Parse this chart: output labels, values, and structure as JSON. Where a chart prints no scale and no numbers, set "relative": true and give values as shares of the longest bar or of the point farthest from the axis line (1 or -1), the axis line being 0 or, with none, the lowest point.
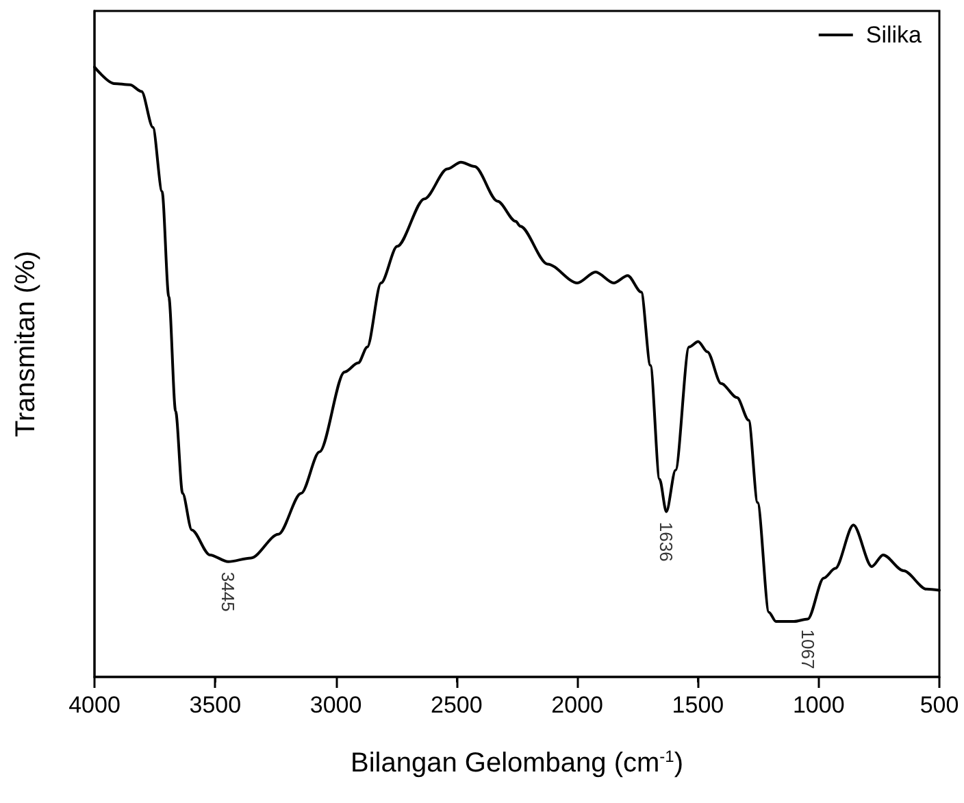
{
  "chart_data": {
    "type": "line",
    "relative": true,
    "xlabel": "Bilangan Gelombang (cm$^{-1}$)",
    "ylabel": "Transmitan (%)",
    "xlim": [
      4000,
      500
    ],
    "xticks": [
      4000,
      3500,
      3000,
      2500,
      2000,
      1500,
      1000,
      500
    ],
    "legend": "top right",
    "grid": false,
    "marker": "none",
    "line_style": "solid",
    "series": [
      {
        "name": "Silika",
        "color": "#000000",
        "x": [
          4000,
          3919,
          3853,
          3805,
          3758,
          3720,
          3692,
          3664,
          3635,
          3597,
          3522,
          3446,
          3352,
          3238,
          3144,
          3068,
          2964,
          2907,
          2870,
          2813,
          2746,
          2633,
          2538,
          2482,
          2425,
          2330,
          2255,
          2236,
          2123,
          2000,
          1924,
          1849,
          1791,
          1735,
          1697,
          1659,
          1631,
          1593,
          1537,
          1499,
          1461,
          1404,
          1338,
          1290,
          1253,
          1206,
          1177,
          1102,
          1045,
          979,
          931,
          856,
          780,
          733,
          648,
          553,
          500
        ],
        "values": [
          1.0,
          0.973,
          0.971,
          0.96,
          0.901,
          0.796,
          0.623,
          0.436,
          0.301,
          0.241,
          0.2,
          0.189,
          0.195,
          0.234,
          0.301,
          0.369,
          0.5,
          0.515,
          0.541,
          0.646,
          0.706,
          0.784,
          0.833,
          0.844,
          0.837,
          0.78,
          0.747,
          0.739,
          0.677,
          0.646,
          0.664,
          0.646,
          0.658,
          0.631,
          0.511,
          0.324,
          0.271,
          0.339,
          0.541,
          0.55,
          0.533,
          0.481,
          0.458,
          0.421,
          0.286,
          0.106,
          0.091,
          0.091,
          0.095,
          0.162,
          0.178,
          0.249,
          0.181,
          0.2,
          0.174,
          0.144,
          0.142
        ]
      }
    ],
    "annotations": [
      {
        "text": "3445",
        "x": 3446,
        "y": 0.189
      },
      {
        "text": "1636",
        "x": 1631,
        "y": 0.271
      },
      {
        "text": "1067",
        "x": 1045,
        "y": 0.095
      }
    ]
  }
}
